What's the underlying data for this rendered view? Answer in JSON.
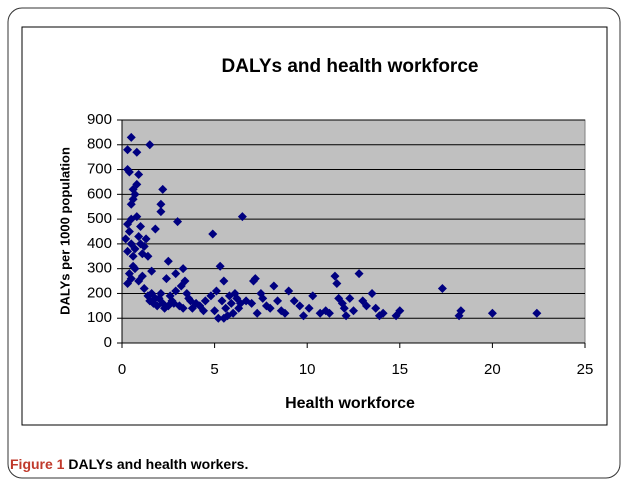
{
  "chart_data": {
    "type": "scatter",
    "title": "DALYs and health workforce",
    "xlabel": "Health workforce",
    "ylabel": "DALYs per 1000 population",
    "caption_label": "Figure 1",
    "caption": "DALYs and health workers.",
    "color": "#000080",
    "plot_background": "#c0c0c0",
    "grid": true,
    "xlim": [
      0,
      25
    ],
    "xticks": [
      0,
      5,
      10,
      15,
      20,
      25
    ],
    "ylim": [
      0,
      900
    ],
    "yticks": [
      0,
      100,
      200,
      300,
      400,
      500,
      600,
      700,
      800,
      900
    ],
    "x": [
      0.3,
      0.5,
      0.8,
      0.3,
      0.4,
      0.6,
      0.8,
      0.7,
      0.9,
      0.5,
      0.6,
      0.3,
      0.5,
      0.8,
      0.4,
      0.2,
      0.5,
      0.7,
      0.3,
      0.6,
      0.9,
      1.0,
      1.1,
      1.2,
      1.3,
      1.4,
      0.4,
      0.5,
      0.7,
      0.3,
      0.9,
      1.1,
      1.5,
      1.8,
      2.1,
      2.1,
      2.2,
      2.5,
      1.6,
      1.4,
      1.5,
      1.7,
      1.9,
      2.0,
      2.1,
      2.3,
      2.4,
      2.6,
      2.7,
      2.8,
      2.9,
      3.0,
      3.1,
      3.2,
      3.3,
      3.4,
      3.5,
      3.6,
      3.7,
      3.8,
      4.0,
      4.2,
      4.5,
      4.8,
      4.9,
      5.0,
      5.1,
      5.2,
      5.3,
      5.4,
      5.5,
      5.6,
      5.7,
      5.8,
      5.9,
      6.0,
      6.1,
      6.2,
      6.3,
      6.5,
      6.7,
      7.0,
      7.1,
      7.2,
      7.3,
      7.5,
      7.6,
      7.8,
      8.0,
      8.2,
      8.4,
      8.6,
      8.8,
      9.0,
      9.3,
      9.6,
      9.8,
      10.1,
      10.3,
      10.7,
      11.0,
      11.2,
      11.5,
      11.6,
      11.7,
      11.9,
      12.0,
      12.1,
      12.3,
      12.5,
      12.8,
      13.0,
      13.2,
      13.5,
      13.7,
      13.9,
      14.1,
      14.8,
      15.0,
      17.3,
      18.2,
      18.3,
      20.0,
      22.4,
      1.6,
      1.8,
      2.2,
      2.5,
      2.9,
      3.3,
      4.4,
      5.5,
      6.4,
      1.2,
      0.6,
      1.0
    ],
    "values": [
      780,
      830,
      770,
      700,
      690,
      620,
      640,
      600,
      680,
      560,
      580,
      480,
      500,
      510,
      450,
      420,
      400,
      380,
      370,
      350,
      430,
      400,
      360,
      390,
      420,
      350,
      280,
      260,
      300,
      240,
      250,
      270,
      800,
      460,
      560,
      530,
      620,
      330,
      290,
      190,
      170,
      160,
      150,
      180,
      200,
      140,
      260,
      190,
      170,
      160,
      280,
      490,
      150,
      230,
      300,
      250,
      200,
      180,
      170,
      140,
      160,
      150,
      170,
      190,
      440,
      130,
      210,
      100,
      310,
      170,
      250,
      140,
      110,
      190,
      160,
      120,
      200,
      180,
      140,
      510,
      170,
      160,
      250,
      260,
      120,
      200,
      180,
      150,
      140,
      230,
      170,
      130,
      120,
      210,
      170,
      150,
      110,
      140,
      190,
      120,
      130,
      120,
      270,
      240,
      180,
      160,
      140,
      110,
      180,
      130,
      280,
      170,
      150,
      200,
      140,
      110,
      120,
      110,
      130,
      220,
      110,
      130,
      120,
      120,
      200,
      180,
      160,
      150,
      210,
      140,
      130,
      100,
      160,
      220,
      310,
      470
    ]
  }
}
